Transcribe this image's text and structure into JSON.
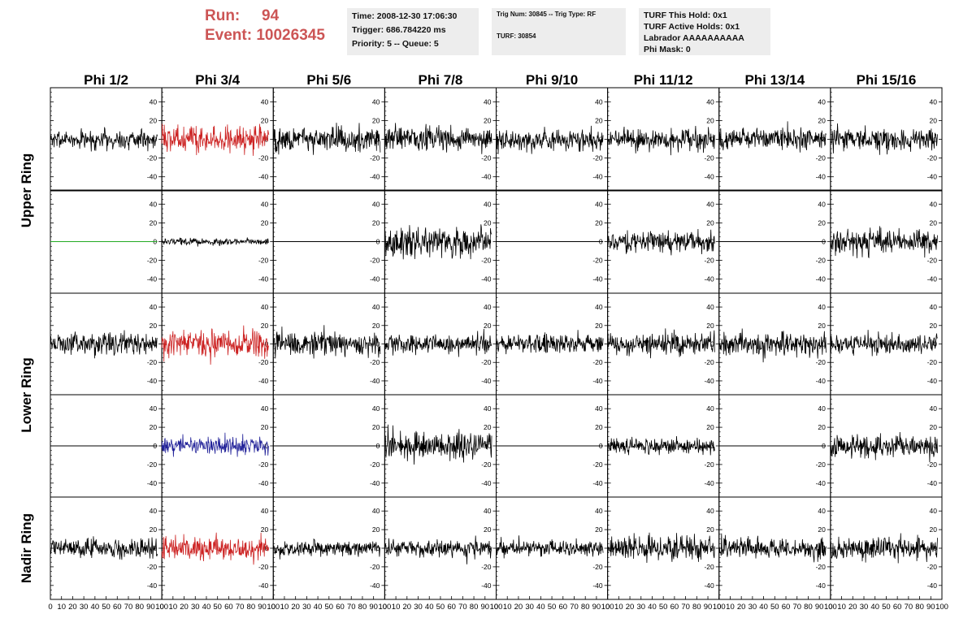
{
  "header": {
    "run_label": "Run:",
    "run_value": "94",
    "event_label": "Event:",
    "event_value": "10026345"
  },
  "info": {
    "time": "Time: 2008-12-30 17:06:30",
    "trigger": "Trigger: 686.784220 ms",
    "priority": "Priority: 5 -- Queue: 5",
    "trig_num": "Trig Num: 30845 -- Trig Type: RF",
    "turf": "TURF: 30854",
    "turf_this_hold": "TURF This Hold: 0x1",
    "turf_active_holds": "TURF Active Holds: 0x1",
    "labrador": "Labrador AAAAAAAAAA",
    "phi_mask": "Phi Mask: 0"
  },
  "colors": {
    "trace_default": "#000000",
    "trace_red": "#cc2222",
    "trace_blue": "#222299",
    "trace_green": "#22aa22",
    "run_text": "#cc5555"
  },
  "chart_data": {
    "type": "line",
    "columns": [
      "Phi 1/2",
      "Phi 3/4",
      "Phi 5/6",
      "Phi 7/8",
      "Phi 9/10",
      "Phi 11/12",
      "Phi 13/14",
      "Phi 15/16"
    ],
    "rows": [
      "Upper Ring",
      "Lower Ring",
      "Nadir Ring"
    ],
    "xlim": [
      0,
      100
    ],
    "ylim": [
      -55,
      55
    ],
    "yticks": [
      -40,
      -20,
      0,
      20,
      40
    ],
    "x_tick_labels": [
      "0",
      "10",
      "20",
      "30",
      "40",
      "50",
      "60",
      "70",
      "80",
      "90",
      "100"
    ],
    "panels": [
      [
        {
          "color": "black",
          "amplitude": 12
        },
        {
          "color": "red",
          "amplitude": 16
        },
        {
          "color": "black",
          "amplitude": 15
        },
        {
          "color": "black",
          "amplitude": 14
        },
        {
          "color": "black",
          "amplitude": 13
        },
        {
          "color": "black",
          "amplitude": 13
        },
        {
          "color": "black",
          "amplitude": 13
        },
        {
          "color": "black",
          "amplitude": 14
        }
      ],
      [
        {
          "color": "green",
          "amplitude": 0
        },
        {
          "color": "black",
          "amplitude": 4
        },
        {
          "color": "black",
          "amplitude": 0
        },
        {
          "color": "black",
          "amplitude": 18
        },
        {
          "color": "black",
          "amplitude": 0
        },
        {
          "color": "black",
          "amplitude": 12
        },
        {
          "color": "black",
          "amplitude": 0
        },
        {
          "color": "black",
          "amplitude": 14
        }
      ],
      [
        {
          "color": "black",
          "amplitude": 13
        },
        {
          "color": "red",
          "amplitude": 16
        },
        {
          "color": "black",
          "amplitude": 15
        },
        {
          "color": "black",
          "amplitude": 12
        },
        {
          "color": "black",
          "amplitude": 11
        },
        {
          "color": "black",
          "amplitude": 13
        },
        {
          "color": "black",
          "amplitude": 14
        },
        {
          "color": "black",
          "amplitude": 12
        }
      ],
      [
        {
          "color": "black",
          "amplitude": 0
        },
        {
          "color": "blue",
          "amplitude": 11
        },
        {
          "color": "black",
          "amplitude": 0
        },
        {
          "color": "black",
          "amplitude": 17
        },
        {
          "color": "black",
          "amplitude": 0
        },
        {
          "color": "black",
          "amplitude": 9
        },
        {
          "color": "black",
          "amplitude": 0
        },
        {
          "color": "black",
          "amplitude": 14
        }
      ],
      [
        {
          "color": "black",
          "amplitude": 11
        },
        {
          "color": "red",
          "amplitude": 14
        },
        {
          "color": "black",
          "amplitude": 10
        },
        {
          "color": "black",
          "amplitude": 12
        },
        {
          "color": "black",
          "amplitude": 10
        },
        {
          "color": "black",
          "amplitude": 15
        },
        {
          "color": "black",
          "amplitude": 12
        },
        {
          "color": "black",
          "amplitude": 14
        }
      ]
    ]
  }
}
